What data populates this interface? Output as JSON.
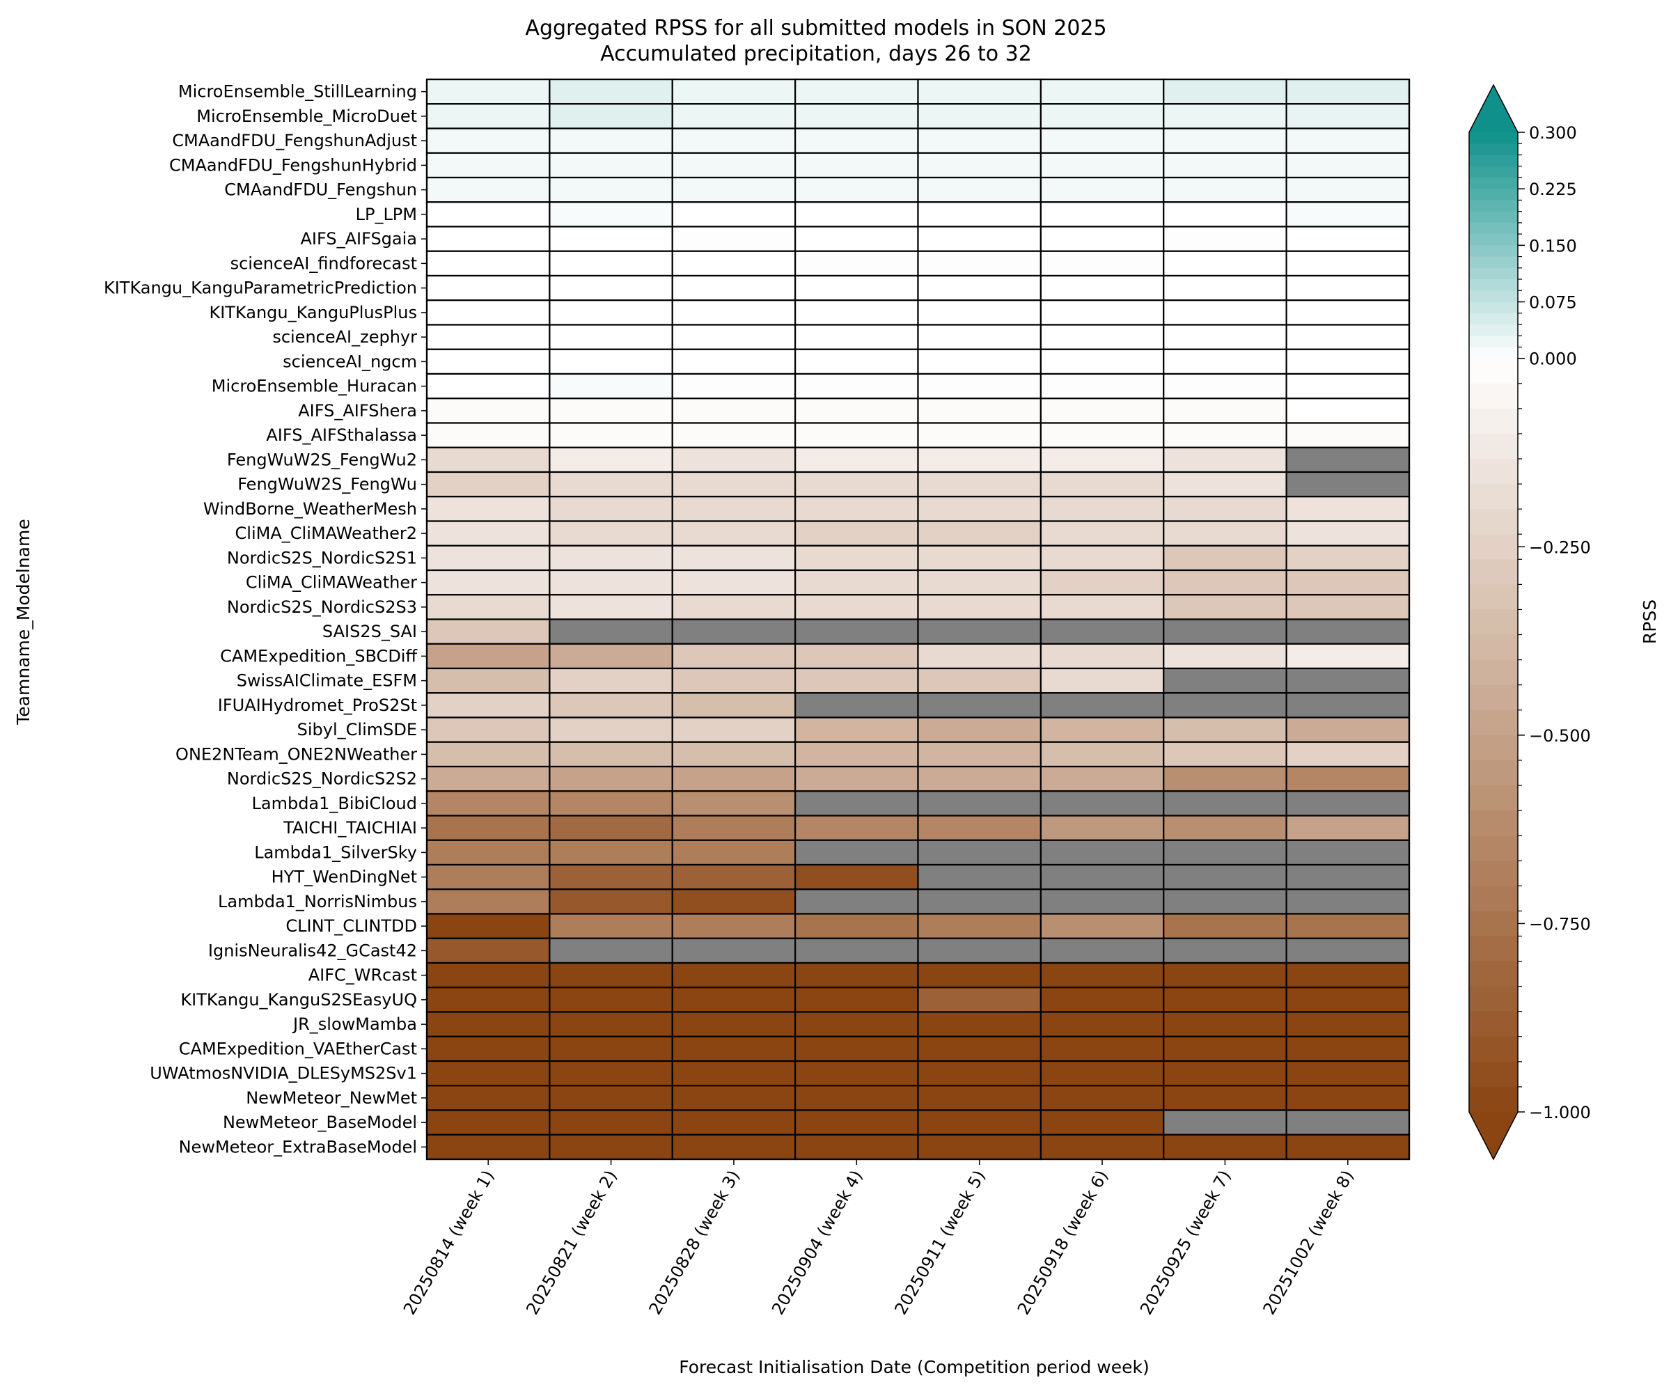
{
  "chart_data": {
    "type": "heatmap",
    "title": "Aggregated RPSS for all submitted models in SON 2025",
    "subtitle": "Accumulated precipitation, days 26 to 32",
    "xlabel": "Forecast Initialisation Date (Competition period week)",
    "ylabel": "Teamname_Modelname",
    "x": [
      "20250814 (week 1)",
      "20250821 (week 2)",
      "20250828 (week 3)",
      "20250904 (week 4)",
      "20250911 (week 5)",
      "20250918 (week 6)",
      "20250925 (week 7)",
      "20251002 (week 8)"
    ],
    "y": [
      "MicroEnsemble_StillLearning",
      "MicroEnsemble_MicroDuet",
      "CMAandFDU_FengshunAdjust",
      "CMAandFDU_FengshunHybrid",
      "CMAandFDU_Fengshun",
      "LP_LPM",
      "AIFS_AIFSgaia",
      "scienceAI_findforecast",
      "KITKangu_KanguParametricPrediction",
      "KITKangu_KanguPlusPlus",
      "scienceAI_zephyr",
      "scienceAI_ngcm",
      "MicroEnsemble_Huracan",
      "AIFS_AIFShera",
      "AIFS_AIFSthalassa",
      "FengWuW2S_FengWu2",
      "FengWuW2S_FengWu",
      "WindBorne_WeatherMesh",
      "CliMA_CliMAWeather2",
      "NordicS2S_NordicS2S1",
      "CliMA_CliMAWeather",
      "NordicS2S_NordicS2S3",
      "SAIS2S_SAI",
      "CAMExpedition_SBCDiff",
      "SwissAIClimate_ESFM",
      "IFUAIHydromet_ProS2St",
      "Sibyl_ClimSDE",
      "ONE2NTeam_ONE2NWeather",
      "NordicS2S_NordicS2S2",
      "Lambda1_BibiCloud",
      "TAICHI_TAICHIAI",
      "Lambda1_SilverSky",
      "HYT_WenDingNet",
      "Lambda1_NorrisNimbus",
      "CLINT_CLINTDD",
      "IgnisNeuralis42_GCast42",
      "AIFC_WRcast",
      "KITKangu_KanguS2SEasyUQ",
      "JR_slowMamba",
      "CAMExpedition_VAEtherCast",
      "UWAtmosNVIDIA_DLESyMS2Sv1",
      "NewMeteor_NewMet",
      "NewMeteor_BaseModel",
      "NewMeteor_ExtraBaseModel"
    ],
    "values": [
      [
        0.025,
        0.04,
        0.025,
        0.025,
        0.025,
        0.025,
        0.04,
        0.04
      ],
      [
        0.025,
        0.04,
        0.025,
        0.025,
        0.025,
        0.025,
        0.025,
        0.03
      ],
      [
        0.015,
        0.015,
        0.015,
        0.015,
        0.015,
        0.015,
        0.015,
        0.015
      ],
      [
        0.015,
        0.015,
        0.015,
        0.015,
        0.015,
        0.015,
        0.015,
        0.015
      ],
      [
        0.015,
        0.015,
        0.015,
        0.015,
        0.015,
        0.015,
        0.015,
        0.015
      ],
      [
        0.0,
        0.01,
        0.0,
        0.0,
        0.0,
        0.0,
        0.0,
        0.01
      ],
      [
        0.0,
        0.0,
        -0.01,
        0.0,
        0.0,
        0.0,
        -0.01,
        0.0
      ],
      [
        0.0,
        0.0,
        0.0,
        -0.01,
        -0.01,
        -0.01,
        0.0,
        0.0
      ],
      [
        0.0,
        0.0,
        0.0,
        0.0,
        0.0,
        0.0,
        0.0,
        0.0
      ],
      [
        0.0,
        0.0,
        0.0,
        0.0,
        0.0,
        0.0,
        0.0,
        0.0
      ],
      [
        0.0,
        0.0,
        0.0,
        0.0,
        0.0,
        0.0,
        0.0,
        0.0
      ],
      [
        0.0,
        0.0,
        0.0,
        0.0,
        0.0,
        0.0,
        0.0,
        0.0
      ],
      [
        0.0,
        0.01,
        -0.01,
        -0.01,
        -0.01,
        -0.01,
        -0.01,
        0.0
      ],
      [
        -0.02,
        -0.02,
        -0.02,
        -0.02,
        -0.02,
        -0.02,
        -0.02,
        0.0
      ],
      [
        -0.02,
        -0.02,
        -0.02,
        -0.02,
        -0.02,
        -0.02,
        -0.02,
        -0.02
      ],
      [
        -0.2,
        -0.1,
        -0.15,
        -0.1,
        -0.1,
        -0.1,
        -0.15,
        null
      ],
      [
        -0.25,
        -0.2,
        -0.2,
        -0.2,
        -0.2,
        -0.2,
        -0.15,
        null
      ],
      [
        -0.15,
        -0.2,
        -0.2,
        -0.2,
        -0.2,
        -0.2,
        -0.2,
        -0.15
      ],
      [
        -0.15,
        -0.2,
        -0.2,
        -0.25,
        -0.25,
        -0.2,
        -0.2,
        -0.15
      ],
      [
        -0.15,
        -0.15,
        -0.15,
        -0.2,
        -0.2,
        -0.2,
        -0.3,
        -0.25
      ],
      [
        -0.15,
        -0.15,
        -0.15,
        -0.2,
        -0.2,
        -0.25,
        -0.3,
        -0.3
      ],
      [
        -0.2,
        -0.15,
        -0.2,
        -0.2,
        -0.2,
        -0.2,
        -0.3,
        -0.3
      ],
      [
        -0.3,
        null,
        null,
        null,
        null,
        null,
        null,
        null
      ],
      [
        -0.5,
        -0.45,
        -0.3,
        -0.3,
        -0.2,
        -0.2,
        -0.15,
        -0.1
      ],
      [
        -0.35,
        -0.25,
        -0.3,
        -0.3,
        -0.3,
        -0.2,
        null,
        null
      ],
      [
        -0.25,
        -0.3,
        -0.35,
        null,
        null,
        null,
        null,
        null
      ],
      [
        -0.3,
        -0.25,
        -0.25,
        -0.4,
        -0.45,
        -0.4,
        -0.35,
        -0.45
      ],
      [
        -0.35,
        -0.35,
        -0.35,
        -0.4,
        -0.4,
        -0.35,
        -0.3,
        -0.25
      ],
      [
        -0.45,
        -0.5,
        -0.5,
        -0.45,
        -0.45,
        -0.45,
        -0.6,
        -0.65
      ],
      [
        -0.65,
        -0.65,
        -0.6,
        null,
        null,
        null,
        null,
        null
      ],
      [
        -0.75,
        -0.8,
        -0.7,
        -0.65,
        -0.65,
        -0.55,
        -0.6,
        -0.5
      ],
      [
        -0.7,
        -0.7,
        -0.7,
        null,
        null,
        null,
        null,
        null
      ],
      [
        -0.7,
        -0.85,
        -0.85,
        -0.95,
        null,
        null,
        null,
        null
      ],
      [
        -0.7,
        -0.9,
        -0.95,
        null,
        null,
        null,
        null,
        null
      ],
      [
        -1.0,
        -0.7,
        -0.7,
        -0.75,
        -0.7,
        -0.6,
        -0.75,
        -0.75
      ],
      [
        -0.9,
        null,
        null,
        null,
        null,
        null,
        null,
        null
      ],
      [
        -1.0,
        -1.0,
        -1.0,
        -1.0,
        -1.0,
        -1.0,
        -1.0,
        -1.0
      ],
      [
        -1.0,
        -1.0,
        -1.0,
        -1.0,
        -0.85,
        -1.0,
        -1.0,
        -1.0
      ],
      [
        -1.0,
        -1.0,
        -1.0,
        -1.0,
        -1.0,
        -1.0,
        -1.0,
        -1.0
      ],
      [
        -1.0,
        -1.0,
        -1.0,
        -1.0,
        -1.0,
        -1.0,
        -1.0,
        -1.0
      ],
      [
        -1.0,
        -1.0,
        -1.0,
        -1.0,
        -1.0,
        -1.0,
        -1.0,
        -1.0
      ],
      [
        -1.0,
        -1.0,
        -1.0,
        -1.0,
        -1.0,
        -1.0,
        -1.0,
        -1.0
      ],
      [
        -1.0,
        -1.0,
        -1.0,
        -1.0,
        -1.0,
        -1.0,
        null,
        null
      ],
      [
        -1.0,
        -1.0,
        -1.0,
        -1.0,
        -1.0,
        -1.0,
        -1.0,
        -1.0
      ]
    ],
    "colorbar": {
      "label": "RPSS",
      "range": [
        -1.0,
        0.3
      ],
      "ticks": [
        0.3,
        0.225,
        0.15,
        0.075,
        0.0,
        -0.25,
        -0.5,
        -0.75,
        -1.0
      ],
      "tick_labels": [
        "0.300",
        "0.225",
        "0.150",
        "0.075",
        "0.000",
        "−0.250",
        "−0.500",
        "−0.750",
        "−1.000"
      ],
      "extend": "both",
      "colors": {
        "positive_max": "#0f908a",
        "zero": "#ffffff",
        "negative_max": "#8b4513"
      }
    },
    "missing_color": "#808080",
    "grid": false
  }
}
